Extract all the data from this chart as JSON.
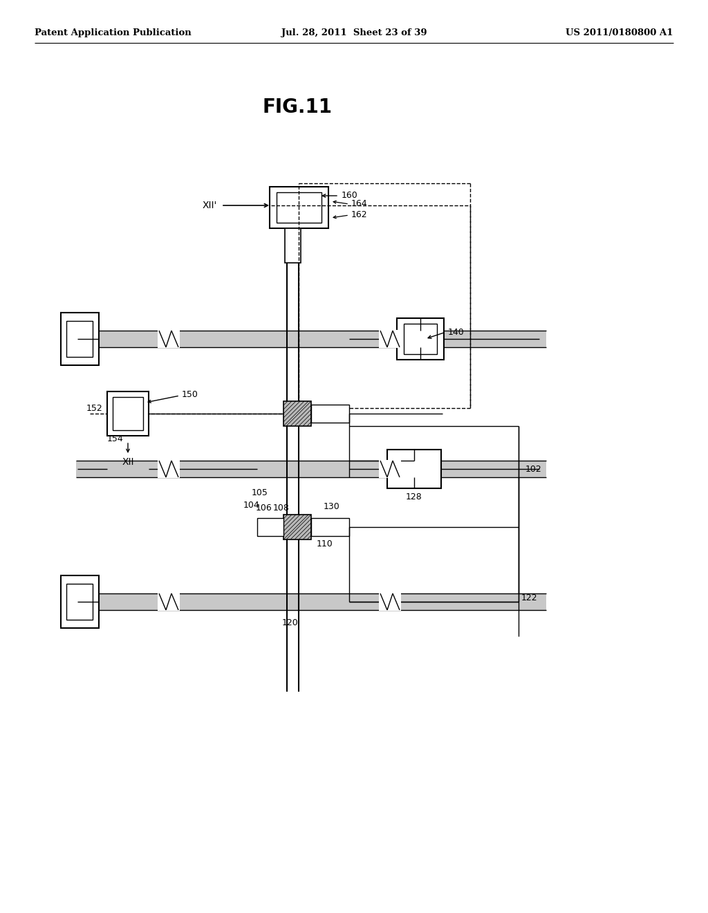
{
  "header_left": "Patent Application Publication",
  "header_center": "Jul. 28, 2011  Sheet 23 of 39",
  "header_right": "US 2011/0180800 A1",
  "fig_title": "FIG.11",
  "bg_color": "#ffffff"
}
